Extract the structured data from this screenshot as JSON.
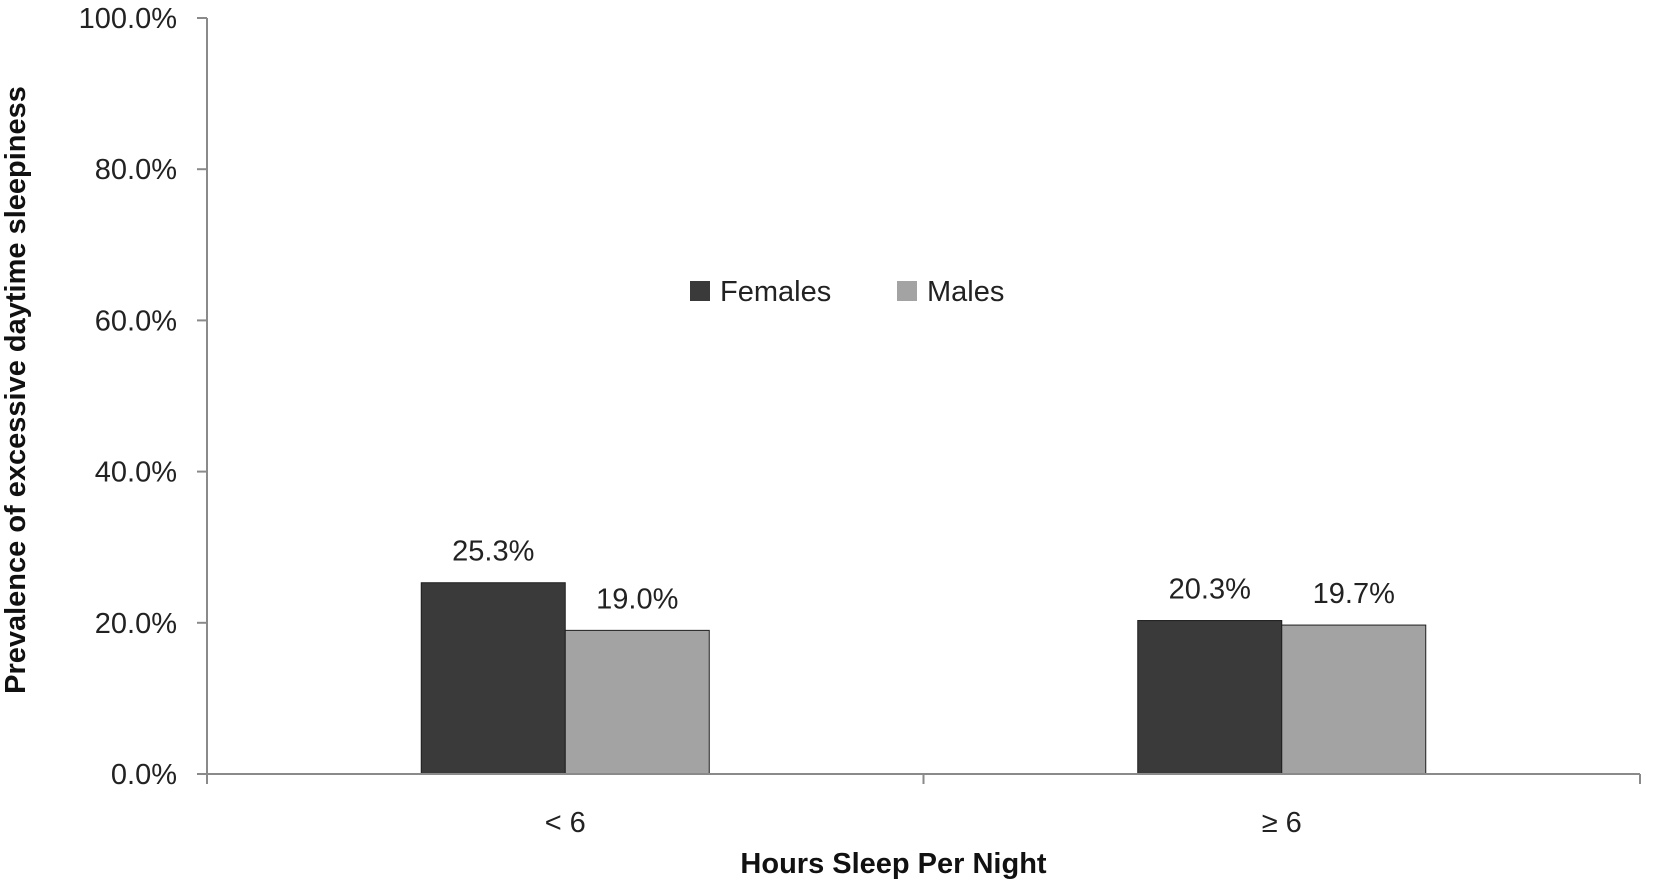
{
  "chart_data": {
    "type": "bar",
    "title": "",
    "xlabel": "Hours Sleep Per Night",
    "ylabel": "Prevalence of excessive daytime sleepiness",
    "categories": [
      "< 6",
      "≥ 6"
    ],
    "series": [
      {
        "name": "Females",
        "color": "#3a3a3a",
        "values": [
          25.3,
          20.3
        ],
        "labels": [
          "25.3%",
          "20.3%"
        ]
      },
      {
        "name": "Males",
        "color": "#a3a3a3",
        "values": [
          19.0,
          19.7
        ],
        "labels": [
          "19.0%",
          "19.7%"
        ]
      }
    ],
    "ylim": [
      0,
      100
    ],
    "yticks": [
      0,
      20,
      40,
      60,
      80,
      100
    ],
    "ytick_labels": [
      "0.0%",
      "20.0%",
      "40.0%",
      "60.0%",
      "80.0%",
      "100.0%"
    ],
    "grid": false,
    "legend_position": "top-center"
  }
}
